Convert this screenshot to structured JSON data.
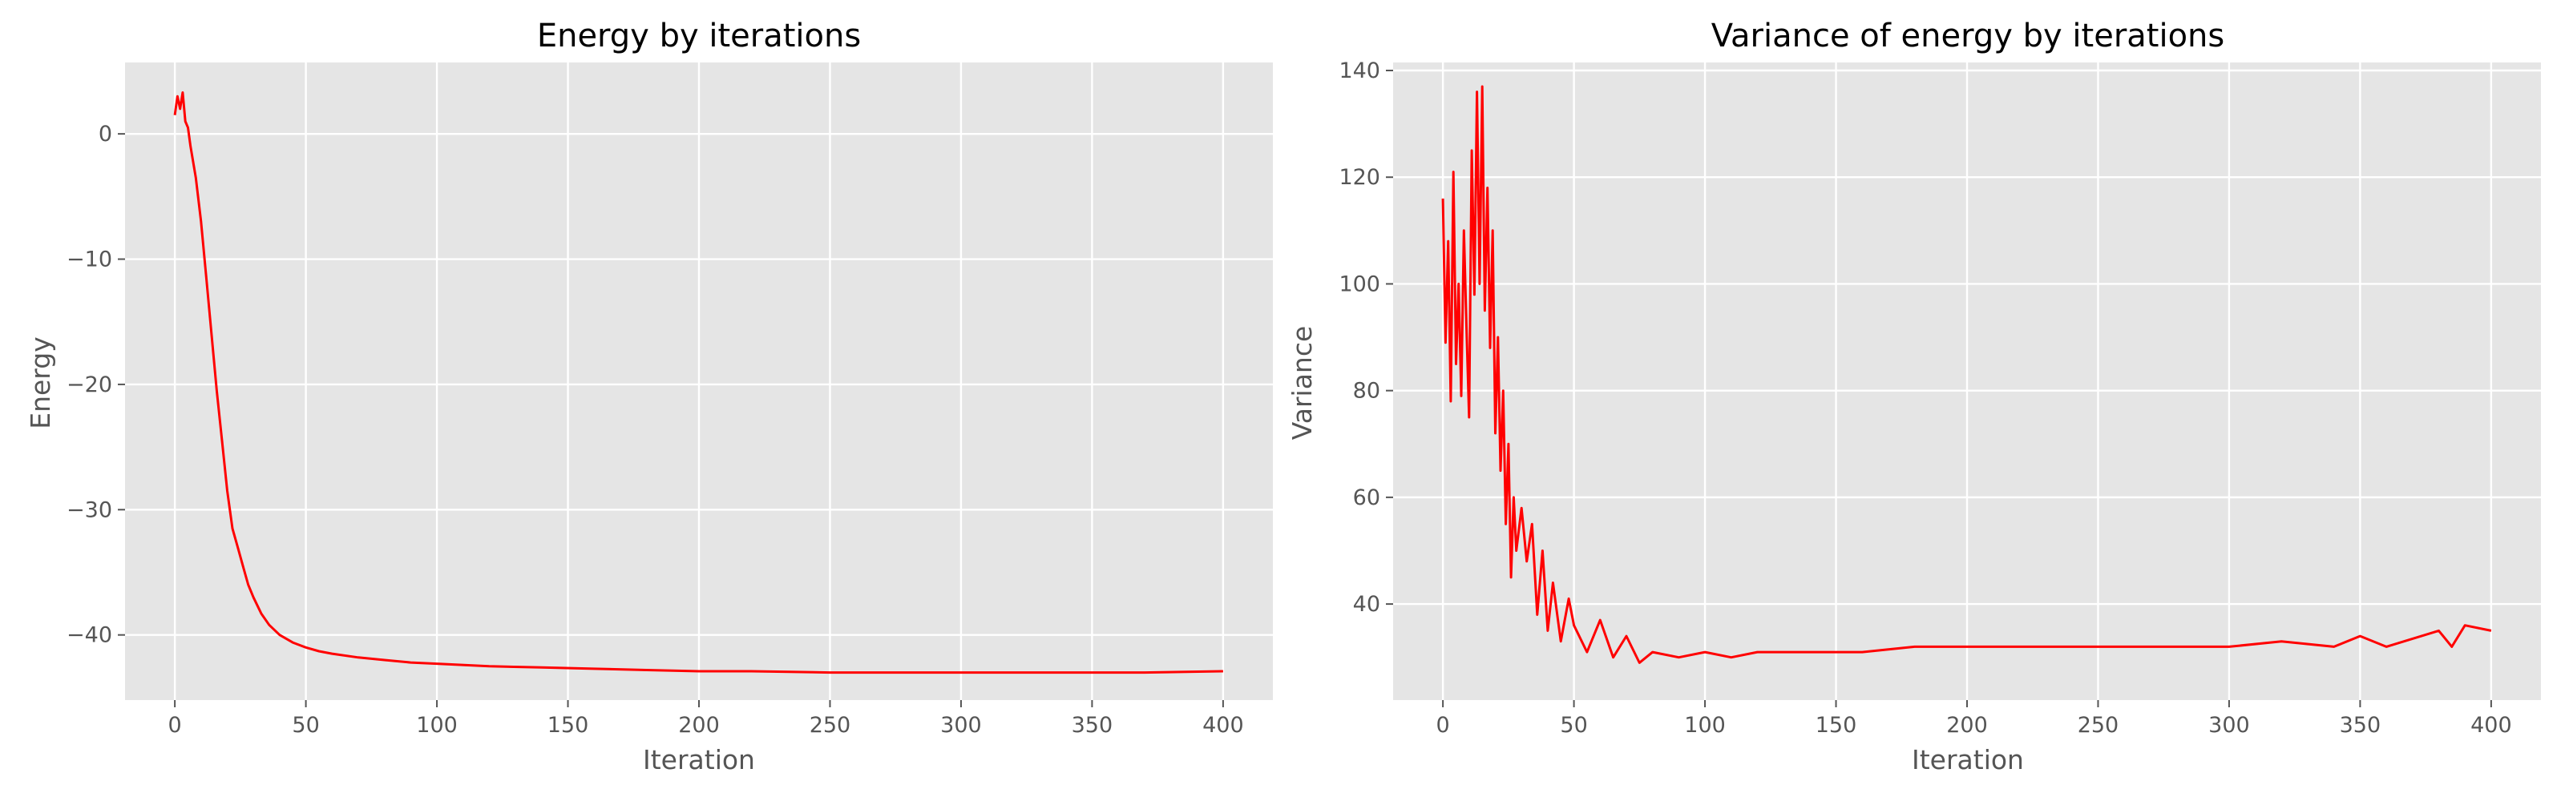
{
  "chart_data": [
    {
      "type": "line",
      "title": "Energy by iterations",
      "xlabel": "Iteration",
      "ylabel": "Energy",
      "xlim": [
        -19,
        419
      ],
      "ylim": [
        -45.2,
        5.7
      ],
      "xticks": [
        0,
        50,
        100,
        150,
        200,
        250,
        300,
        350,
        400
      ],
      "yticks": [
        0,
        -10,
        -20,
        -30,
        -40
      ],
      "grid": true,
      "color": "#ff0000",
      "series": [
        {
          "x": [
            0,
            1,
            2,
            3,
            4,
            5,
            6,
            8,
            10,
            12,
            14,
            16,
            18,
            20,
            22,
            24,
            26,
            28,
            30,
            33,
            36,
            40,
            45,
            50,
            55,
            60,
            70,
            80,
            90,
            100,
            120,
            140,
            160,
            180,
            200,
            220,
            250,
            280,
            300,
            320,
            350,
            370,
            400
          ],
          "y": [
            1.5,
            3.0,
            2.0,
            3.3,
            1.0,
            0.5,
            -1.0,
            -3.5,
            -7.0,
            -11.5,
            -16.0,
            -20.5,
            -24.5,
            -28.5,
            -31.5,
            -33.0,
            -34.5,
            -36.0,
            -37.0,
            -38.3,
            -39.2,
            -40.0,
            -40.6,
            -41.0,
            -41.3,
            -41.5,
            -41.8,
            -42.0,
            -42.2,
            -42.3,
            -42.5,
            -42.6,
            -42.7,
            -42.8,
            -42.9,
            -42.9,
            -43.0,
            -43.0,
            -43.0,
            -43.0,
            -43.0,
            -43.0,
            -42.9
          ]
        }
      ]
    },
    {
      "type": "line",
      "title": "Variance of energy by iterations",
      "xlabel": "Iteration",
      "ylabel": "Variance",
      "xlim": [
        -19,
        419
      ],
      "ylim": [
        22,
        141.5
      ],
      "xticks": [
        0,
        50,
        100,
        150,
        200,
        250,
        300,
        350,
        400
      ],
      "yticks": [
        40,
        60,
        80,
        100,
        120,
        140
      ],
      "grid": true,
      "color": "#ff0000",
      "series": [
        {
          "x": [
            0,
            1,
            2,
            3,
            4,
            5,
            6,
            7,
            8,
            9,
            10,
            11,
            12,
            13,
            14,
            15,
            16,
            17,
            18,
            19,
            20,
            21,
            22,
            23,
            24,
            25,
            26,
            27,
            28,
            30,
            32,
            34,
            36,
            38,
            40,
            42,
            45,
            48,
            50,
            55,
            60,
            65,
            70,
            75,
            80,
            90,
            100,
            110,
            120,
            130,
            140,
            160,
            180,
            200,
            220,
            240,
            260,
            280,
            300,
            320,
            340,
            350,
            360,
            380,
            385,
            390,
            400
          ],
          "y": [
            116,
            89,
            108,
            78,
            121,
            85,
            100,
            79,
            110,
            92,
            75,
            125,
            98,
            136,
            100,
            137,
            95,
            118,
            88,
            110,
            72,
            90,
            65,
            80,
            55,
            70,
            45,
            60,
            50,
            58,
            48,
            55,
            38,
            50,
            35,
            44,
            33,
            41,
            36,
            31,
            37,
            30,
            34,
            29,
            31,
            30,
            31,
            30,
            31,
            31,
            31,
            31,
            32,
            32,
            32,
            32,
            32,
            32,
            32,
            33,
            32,
            34,
            32,
            35,
            32,
            36,
            35
          ]
        }
      ]
    }
  ]
}
